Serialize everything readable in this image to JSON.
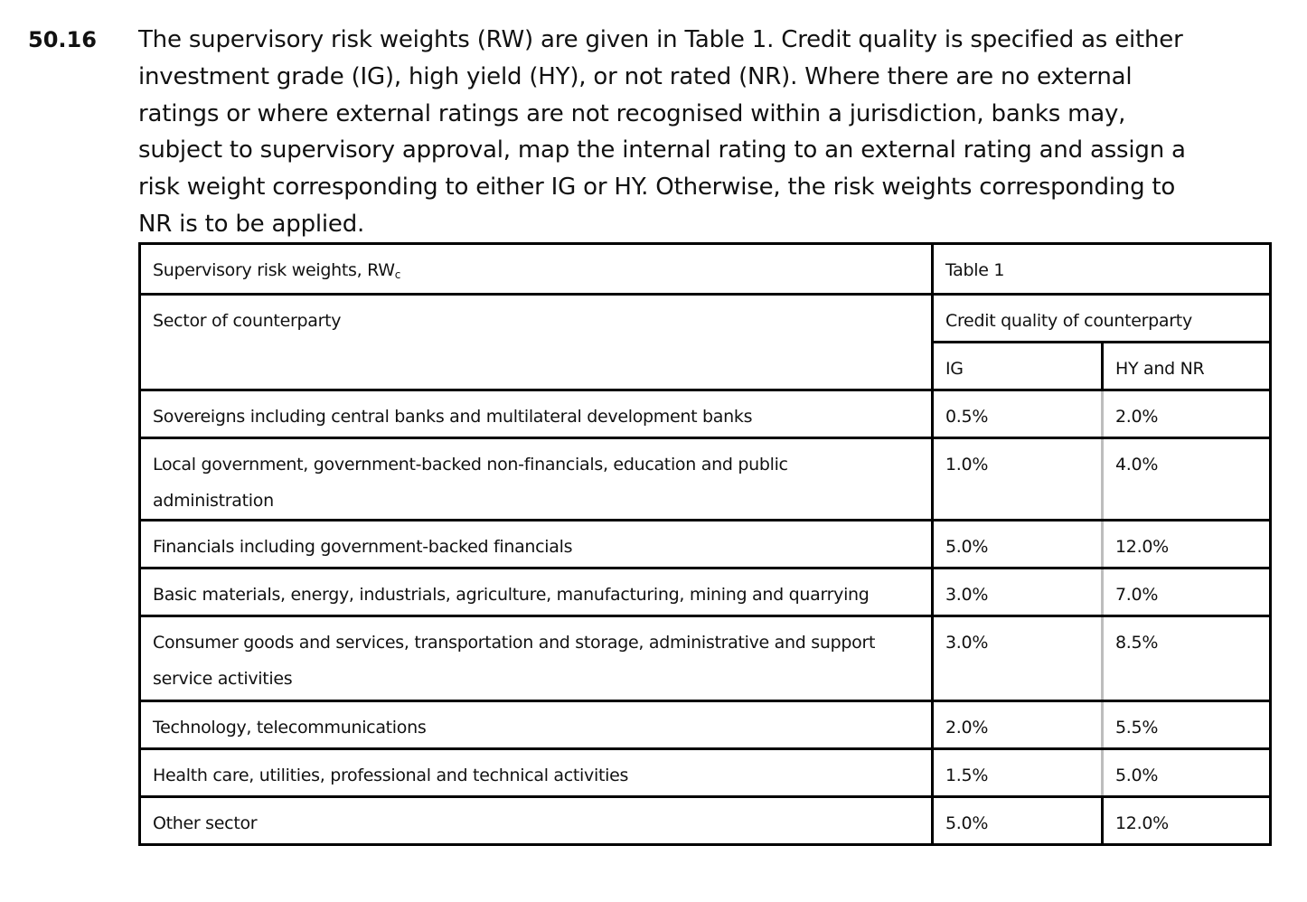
{
  "paragraph": {
    "number": "50.16",
    "lines": [
      "The supervisory risk weights (RW) are given in Table 1. Credit quality is specified as either",
      "investment grade (IG), high yield (HY), or not rated (NR). Where there are no external",
      "ratings or where external ratings are not recognised within a jurisdiction, banks may,",
      "subject to supervisory approval, map the internal rating to an external rating and assign a",
      "risk weight corresponding to either IG or HY. Otherwise, the risk weights corresponding to",
      "NR is to be applied."
    ]
  },
  "table": {
    "title": "Supervisory risk weights, RW",
    "title_subscript": "c",
    "table_label": "Table 1",
    "sector_header": "Sector of counterparty",
    "credit_quality_header": "Credit quality of counterparty",
    "col_ig": "IG",
    "col_hy_nr": "HY and NR",
    "rows": [
      {
        "sector_line1": "Sovereigns including central banks and multilateral development banks",
        "sector_line2": "",
        "ig": "0.5%",
        "hy_nr": "2.0%"
      },
      {
        "sector_line1": "Local government, government-backed non-financials, education and public",
        "sector_line2": "administration",
        "ig": "1.0%",
        "hy_nr": "4.0%"
      },
      {
        "sector_line1": "Financials including government-backed financials",
        "sector_line2": "",
        "ig": "5.0%",
        "hy_nr": "12.0%"
      },
      {
        "sector_line1": "Basic materials, energy, industrials, agriculture, manufacturing, mining and quarrying",
        "sector_line2": "",
        "ig": "3.0%",
        "hy_nr": "7.0%"
      },
      {
        "sector_line1": "Consumer goods and services, transportation and storage, administrative and support",
        "sector_line2": "service activities",
        "ig": "3.0%",
        "hy_nr": "8.5%"
      },
      {
        "sector_line1": "Technology, telecommunications",
        "sector_line2": "",
        "ig": "2.0%",
        "hy_nr": "5.5%"
      },
      {
        "sector_line1": "Health care, utilities, professional and technical activities",
        "sector_line2": "",
        "ig": "1.5%",
        "hy_nr": "5.0%"
      },
      {
        "sector_line1": "Other sector",
        "sector_line2": "",
        "ig": "5.0%",
        "hy_nr": "12.0%"
      }
    ]
  }
}
